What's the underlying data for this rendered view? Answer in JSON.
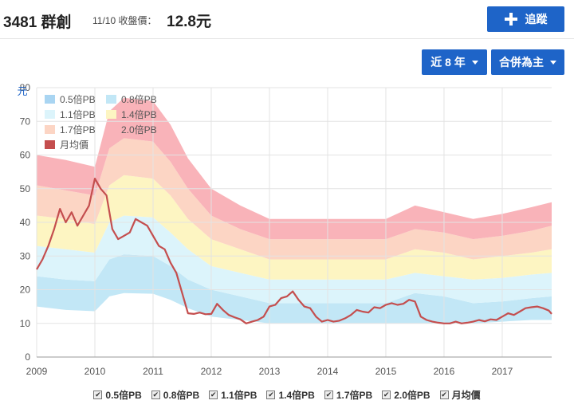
{
  "header": {
    "stock": "3481 群創",
    "date_label": "11/10 收盤價：",
    "price": "12.8元",
    "track_label": "追蹤"
  },
  "controls": {
    "range_label": "近 8 年",
    "basis_label": "合併為主"
  },
  "colors": {
    "accent": "#1e64c8",
    "band_0": "#a9d5f2",
    "band_1": "#c2e7f6",
    "band_2": "#dcf4fb",
    "band_3": "#fdf5c2",
    "band_4": "#fcd5c4",
    "band_5": "#f9b3b9",
    "line": "#c44e4e"
  },
  "chart_data": {
    "type": "area",
    "ylabel": "元",
    "ylim": [
      0,
      80
    ],
    "yticks": [
      "0",
      "10",
      "20",
      "30",
      "40",
      "50",
      "60",
      "70",
      "80"
    ],
    "xlim": [
      2009,
      2017.85
    ],
    "xticks": [
      "2009",
      "2010",
      "2011",
      "2012",
      "2013",
      "2014",
      "2015",
      "2016",
      "2017"
    ],
    "grid": true,
    "legend_position": "top-left",
    "legend": [
      "0.5倍PB",
      "0.8倍PB",
      "1.1倍PB",
      "1.4倍PB",
      "1.7倍PB",
      "2.0倍PB",
      "月均價"
    ],
    "bands": [
      {
        "name": "0.5倍PB",
        "x": [
          2009,
          2009.5,
          2010,
          2010.25,
          2010.5,
          2011,
          2011.3,
          2011.6,
          2012,
          2012.5,
          2013,
          2014,
          2015,
          2015.5,
          2016,
          2016.5,
          2017,
          2017.5,
          2017.85
        ],
        "values": [
          15,
          14,
          13.6,
          18,
          19,
          18.8,
          17,
          14.5,
          12,
          11,
          10,
          10,
          10,
          10,
          10,
          10,
          10.5,
          11,
          11
        ]
      },
      {
        "name": "0.8倍PB",
        "x": [
          2009,
          2009.5,
          2010,
          2010.25,
          2010.5,
          2011,
          2011.3,
          2011.6,
          2012,
          2012.5,
          2013,
          2014,
          2015,
          2015.5,
          2016,
          2016.5,
          2017,
          2017.5,
          2017.85
        ],
        "values": [
          24,
          23,
          22.5,
          29,
          30.5,
          30,
          27,
          23,
          20,
          18,
          16,
          16,
          16,
          19,
          18,
          16,
          16.5,
          17.5,
          18
        ]
      },
      {
        "name": "1.1倍PB",
        "x": [
          2009,
          2009.5,
          2010,
          2010.25,
          2010.5,
          2011,
          2011.3,
          2011.6,
          2012,
          2012.5,
          2013,
          2014,
          2015,
          2015.5,
          2016,
          2016.5,
          2017,
          2017.5,
          2017.85
        ],
        "values": [
          33,
          32,
          31,
          40,
          42,
          41.5,
          37,
          32,
          27,
          25,
          23,
          23,
          23,
          25,
          24,
          23,
          23.5,
          24.5,
          25
        ]
      },
      {
        "name": "1.4倍PB",
        "x": [
          2009,
          2009.5,
          2010,
          2010.25,
          2010.5,
          2011,
          2011.3,
          2011.6,
          2012,
          2012.5,
          2013,
          2014,
          2015,
          2015.5,
          2016,
          2016.5,
          2017,
          2017.5,
          2017.85
        ],
        "values": [
          42,
          41,
          39.5,
          51,
          54,
          53,
          48,
          41,
          35,
          32,
          29,
          29,
          29,
          32,
          31,
          29,
          30,
          31,
          32
        ]
      },
      {
        "name": "1.7倍PB",
        "x": [
          2009,
          2009.5,
          2010,
          2010.25,
          2010.5,
          2011,
          2011.3,
          2011.6,
          2012,
          2012.5,
          2013,
          2014,
          2015,
          2015.5,
          2016,
          2016.5,
          2017,
          2017.5,
          2017.85
        ],
        "values": [
          51,
          49.5,
          48,
          62,
          65,
          64,
          58,
          50,
          42,
          38,
          35,
          35,
          35,
          38,
          37,
          35,
          36,
          37.5,
          39
        ]
      },
      {
        "name": "2.0倍PB",
        "x": [
          2009,
          2009.5,
          2010,
          2010.25,
          2010.5,
          2011,
          2011.3,
          2011.6,
          2012,
          2012.5,
          2013,
          2014,
          2015,
          2015.5,
          2016,
          2016.5,
          2017,
          2017.5,
          2017.85
        ],
        "values": [
          60,
          58.5,
          56.5,
          73,
          77,
          76,
          69,
          59,
          50,
          45,
          41,
          41,
          41,
          45,
          43,
          41,
          42.5,
          44.5,
          46
        ]
      }
    ],
    "series": [
      {
        "name": "月均價",
        "x": [
          2009,
          2009.1,
          2009.2,
          2009.3,
          2009.4,
          2009.5,
          2009.6,
          2009.7,
          2009.8,
          2009.9,
          2010,
          2010.1,
          2010.2,
          2010.3,
          2010.4,
          2010.5,
          2010.6,
          2010.7,
          2010.8,
          2010.9,
          2011,
          2011.1,
          2011.2,
          2011.3,
          2011.4,
          2011.5,
          2011.6,
          2011.7,
          2011.8,
          2011.9,
          2012,
          2012.1,
          2012.2,
          2012.3,
          2012.4,
          2012.5,
          2012.6,
          2012.7,
          2012.8,
          2012.9,
          2013,
          2013.1,
          2013.2,
          2013.3,
          2013.4,
          2013.5,
          2013.6,
          2013.7,
          2013.8,
          2013.9,
          2014,
          2014.1,
          2014.2,
          2014.3,
          2014.4,
          2014.5,
          2014.6,
          2014.7,
          2014.8,
          2014.9,
          2015,
          2015.1,
          2015.2,
          2015.3,
          2015.4,
          2015.5,
          2015.6,
          2015.7,
          2015.8,
          2015.9,
          2016,
          2016.1,
          2016.2,
          2016.3,
          2016.4,
          2016.5,
          2016.6,
          2016.7,
          2016.8,
          2016.9,
          2017,
          2017.1,
          2017.2,
          2017.3,
          2017.4,
          2017.5,
          2017.6,
          2017.7,
          2017.8,
          2017.85
        ],
        "values": [
          26,
          29,
          33,
          38,
          44,
          40,
          43,
          39,
          42,
          45,
          53,
          50,
          48,
          38,
          35,
          36,
          37,
          41,
          40,
          39,
          36,
          33,
          32,
          28,
          25,
          19,
          13,
          12.8,
          13.2,
          12.7,
          12.8,
          15.8,
          14,
          12.5,
          11.8,
          11.2,
          10,
          10.5,
          11,
          12,
          15,
          15.5,
          17.5,
          18,
          19.5,
          17,
          15,
          14.5,
          12,
          10.5,
          11,
          10.5,
          10.8,
          11.5,
          12.5,
          14,
          13.5,
          13.2,
          14.8,
          14.5,
          15.5,
          16,
          15.5,
          15.8,
          17,
          16.5,
          12,
          11,
          10.5,
          10.2,
          10,
          10,
          10.5,
          10,
          10.2,
          10.5,
          11,
          10.6,
          11.2,
          11,
          12,
          13,
          12.5,
          13.5,
          14.5,
          14.8,
          15,
          14.5,
          13.8,
          12.8
        ]
      }
    ]
  }
}
